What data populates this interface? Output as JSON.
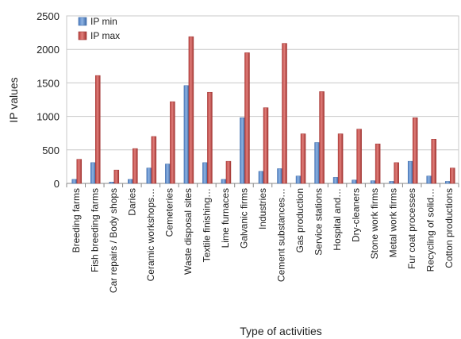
{
  "chart_data": {
    "type": "bar",
    "xlabel": "Type of activities",
    "ylabel": "IP values",
    "ylim": [
      0,
      2500
    ],
    "yticks": [
      0,
      500,
      1000,
      1500,
      2000,
      2500
    ],
    "grid": true,
    "legend_position": "top-left",
    "categories": [
      "Breeding farms",
      "Fish breeding farms",
      "Car repairs / Body shops",
      "Daries",
      "Ceramic workshops…",
      "Cemeteries",
      "Waste disposal sites",
      "Textile finishing…",
      "Lime furnaces",
      "Galvanic firms",
      "Industries",
      "Cement substances…",
      "Gas production",
      "Service stations",
      "Hospital and…",
      "Dry-cleaners",
      "Stone work firms",
      "Metal work firms",
      "Fur coat processes",
      "Recycling of solid…",
      "Cotton productions"
    ],
    "series": [
      {
        "name": "IP min",
        "color": "#4f81bd",
        "values": [
          60,
          310,
          20,
          60,
          230,
          290,
          1460,
          310,
          60,
          980,
          180,
          220,
          110,
          610,
          90,
          50,
          40,
          30,
          330,
          110,
          30
        ]
      },
      {
        "name": "IP max",
        "color": "#c0504d",
        "values": [
          360,
          1610,
          200,
          520,
          700,
          1220,
          2190,
          1360,
          330,
          1950,
          1130,
          2090,
          740,
          1370,
          740,
          810,
          590,
          310,
          980,
          660,
          230
        ]
      }
    ]
  }
}
